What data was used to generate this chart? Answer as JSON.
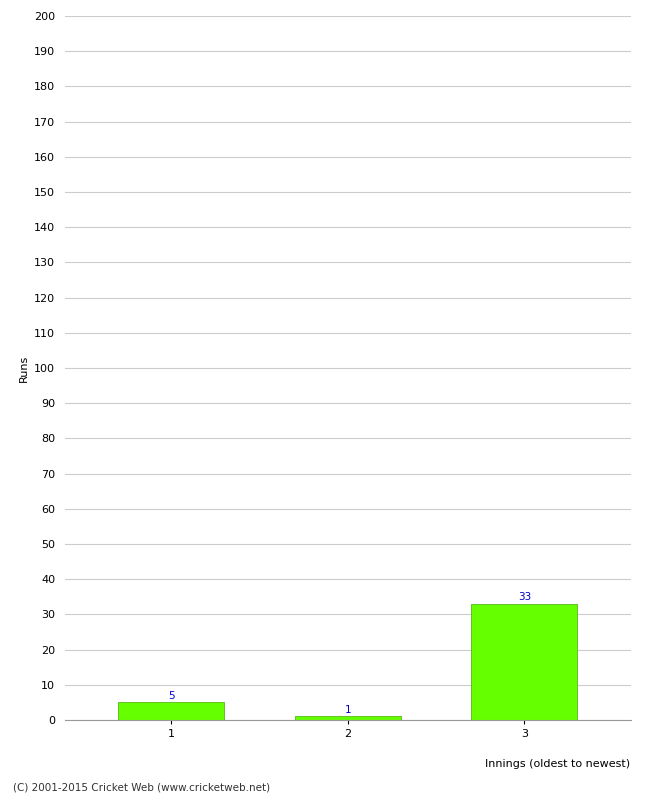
{
  "categories": [
    "1",
    "2",
    "3"
  ],
  "values": [
    5,
    1,
    33
  ],
  "bar_color": "#66ff00",
  "bar_edge_color": "#44aa00",
  "xlabel": "Innings (oldest to newest)",
  "ylabel": "Runs",
  "ylim": [
    0,
    200
  ],
  "yticks": [
    0,
    10,
    20,
    30,
    40,
    50,
    60,
    70,
    80,
    90,
    100,
    110,
    120,
    130,
    140,
    150,
    160,
    170,
    180,
    190,
    200
  ],
  "label_color": "#0000cc",
  "label_fontsize": 7.5,
  "axis_fontsize": 8,
  "tick_fontsize": 8,
  "footer_text": "(C) 2001-2015 Cricket Web (www.cricketweb.net)",
  "footer_fontsize": 7.5,
  "background_color": "#ffffff",
  "grid_color": "#cccccc",
  "bar_width": 0.6
}
